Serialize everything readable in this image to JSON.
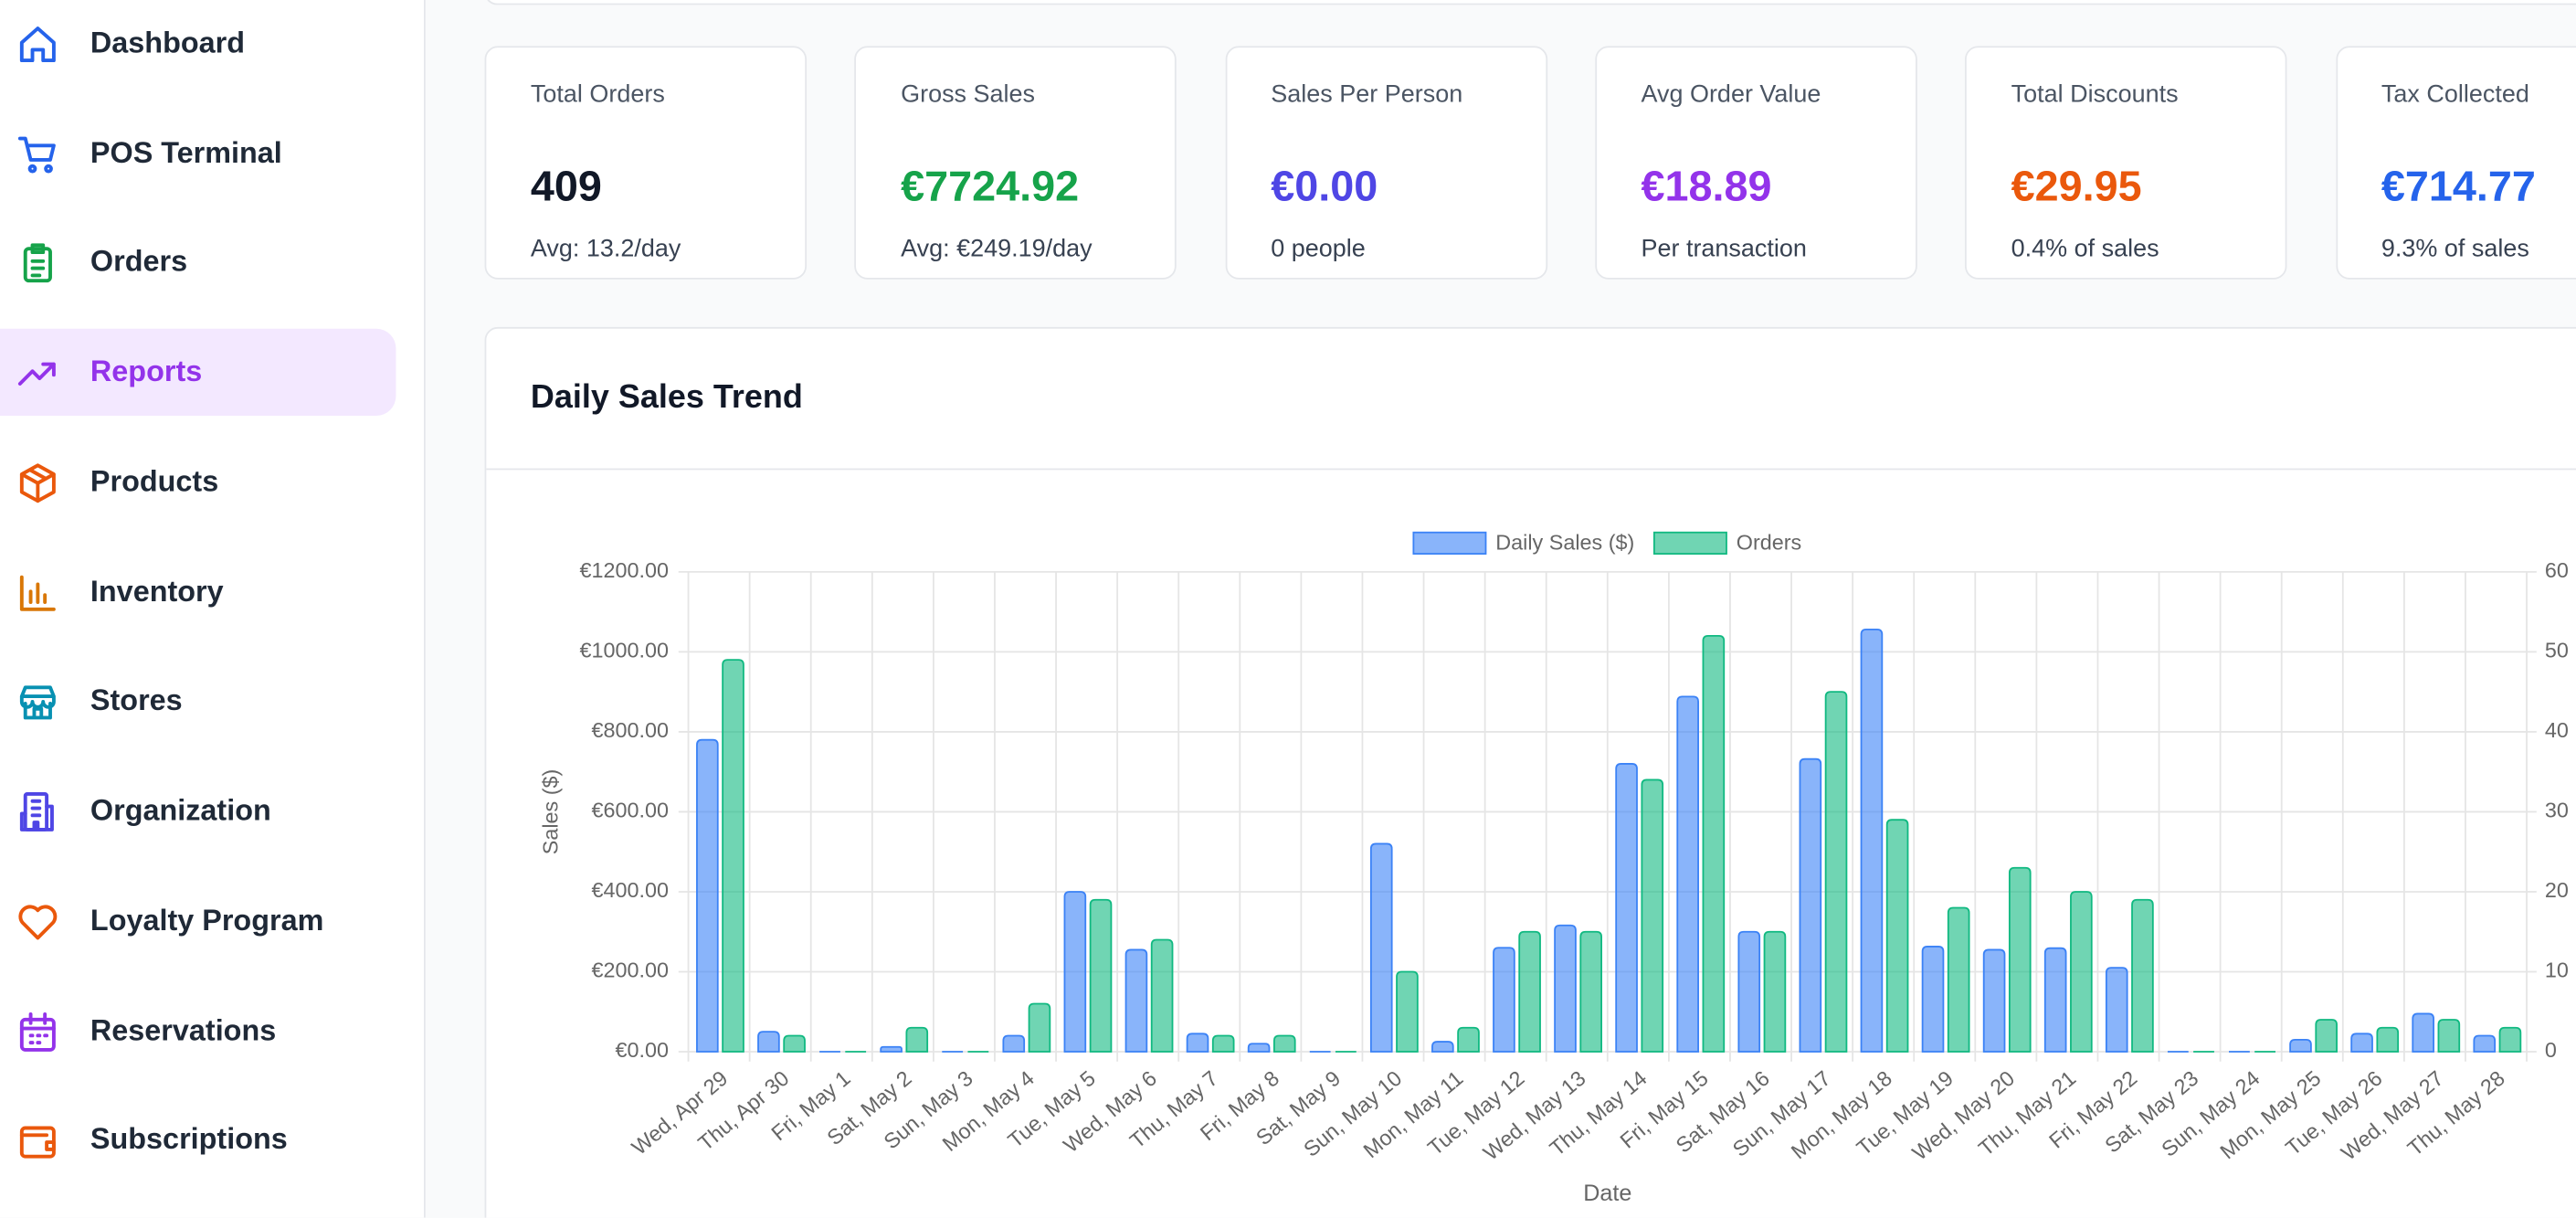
{
  "sidebar": {
    "items": [
      "Dashboard",
      "POS Terminal",
      "Orders",
      "Reports",
      "Products",
      "Inventory",
      "Stores",
      "Organization",
      "Loyalty Program",
      "Reservations",
      "Subscriptions"
    ]
  },
  "stats": [
    {
      "label": "Total Orders",
      "value": "409",
      "sub": "Avg: 13.2/day"
    },
    {
      "label": "Gross Sales",
      "value": "€7724.92",
      "sub": "Avg: €249.19/day"
    },
    {
      "label": "Sales Per Person",
      "value": "€0.00",
      "sub": "0 people"
    },
    {
      "label": "Avg Order Value",
      "value": "€18.89",
      "sub": "Per transaction"
    },
    {
      "label": "Total Discounts",
      "value": "€29.95",
      "sub": "0.4% of sales"
    },
    {
      "label": "Tax Collected",
      "value": "€714.77",
      "sub": "9.3% of sales"
    }
  ],
  "chart_data": {
    "type": "bar",
    "title": "Daily Sales Trend",
    "x_label": "Date",
    "y_label": "Sales ($)",
    "categories": [
      "Wed, Apr 29",
      "Thu, Apr 30",
      "Fri, May 1",
      "Sat, May 2",
      "Sun, May 3",
      "Mon, May 4",
      "Tue, May 5",
      "Wed, May 6",
      "Thu, May 7",
      "Fri, May 8",
      "Sat, May 9",
      "Sun, May 10",
      "Mon, May 11",
      "Tue, May 12",
      "Wed, May 13",
      "Thu, May 14",
      "Fri, May 15",
      "Sat, May 16",
      "Sun, May 17",
      "Mon, May 18",
      "Tue, May 19",
      "Wed, May 20",
      "Thu, May 21",
      "Fri, May 22",
      "Sat, May 23",
      "Sun, May 24",
      "Mon, May 25",
      "Tue, May 26",
      "Wed, May 27",
      "Thu, May 28"
    ],
    "series": [
      {
        "name": "Daily Sales ($)",
        "color": "#3b82f6",
        "values": [
          780,
          50,
          0,
          12,
          0,
          40,
          400,
          255,
          45,
          20,
          0,
          520,
          25,
          260,
          316,
          720,
          888,
          300,
          732,
          1056,
          263,
          255,
          259,
          210,
          0,
          0,
          30,
          45,
          95,
          40
        ]
      },
      {
        "name": "Orders",
        "color": "#10b981",
        "axis": "y2",
        "values": [
          49,
          2,
          0,
          3,
          0,
          6,
          19,
          14,
          2,
          2,
          0,
          10,
          3,
          15,
          15,
          34,
          52,
          15,
          45,
          29,
          18,
          23,
          20,
          19,
          0,
          0,
          4,
          3,
          4,
          3
        ]
      }
    ],
    "ylim": [
      0,
      1200
    ],
    "yticks": [
      {
        "value": 0,
        "label": "€0.00"
      },
      {
        "value": 200,
        "label": "€200.00"
      },
      {
        "value": 400,
        "label": "€400.00"
      },
      {
        "value": 600,
        "label": "€600.00"
      },
      {
        "value": 800,
        "label": "€800.00"
      },
      {
        "value": 1000,
        "label": "€1000.00"
      },
      {
        "value": 1200,
        "label": "€1200.00"
      }
    ],
    "y2lim": [
      0,
      60
    ],
    "y2ticks": [
      0,
      10,
      20,
      30,
      40,
      50,
      60
    ],
    "grid": true,
    "legend": "top"
  }
}
